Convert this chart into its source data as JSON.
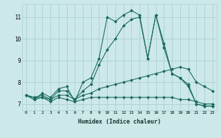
{
  "xlabel": "Humidex (Indice chaleur)",
  "bg_color": "#cce8e8",
  "line_color": "#1a6b5a",
  "grid_color": "#aacfcf",
  "hours": [
    0,
    1,
    2,
    3,
    4,
    5,
    6,
    7,
    8,
    9,
    10,
    11,
    12,
    13,
    14,
    15,
    16,
    17,
    18,
    19,
    20,
    21,
    22,
    23
  ],
  "series": {
    "s1": [
      7.4,
      7.2,
      7.5,
      7.3,
      7.7,
      7.8,
      7.1,
      8.0,
      8.2,
      9.1,
      11.0,
      10.8,
      11.1,
      11.3,
      11.1,
      9.1,
      11.1,
      9.8,
      8.4,
      8.2,
      7.9,
      7.0,
      6.9,
      6.9
    ],
    "s2": [
      7.4,
      7.3,
      7.4,
      7.2,
      7.6,
      7.6,
      7.2,
      7.6,
      7.9,
      8.8,
      9.5,
      10.0,
      10.6,
      10.9,
      11.0,
      9.1,
      11.1,
      9.6,
      8.4,
      8.2,
      7.8,
      7.0,
      6.9,
      6.9
    ],
    "s3": [
      7.4,
      7.3,
      7.3,
      7.2,
      7.4,
      7.4,
      7.2,
      7.4,
      7.5,
      7.7,
      7.8,
      7.9,
      8.0,
      8.1,
      8.2,
      8.3,
      8.4,
      8.5,
      8.6,
      8.7,
      8.6,
      8.0,
      7.8,
      7.6
    ],
    "s4": [
      7.4,
      7.2,
      7.3,
      7.1,
      7.3,
      7.2,
      7.1,
      7.2,
      7.3,
      7.3,
      7.3,
      7.3,
      7.3,
      7.3,
      7.3,
      7.3,
      7.3,
      7.3,
      7.3,
      7.2,
      7.2,
      7.1,
      7.0,
      7.0
    ]
  },
  "ylim": [
    6.7,
    11.6
  ],
  "yticks": [
    7,
    8,
    9,
    10,
    11
  ],
  "xlim": [
    -0.5,
    23.5
  ],
  "xticks": [
    0,
    1,
    2,
    3,
    4,
    5,
    6,
    7,
    8,
    9,
    10,
    11,
    12,
    13,
    14,
    15,
    16,
    17,
    18,
    19,
    20,
    21,
    22,
    23
  ]
}
